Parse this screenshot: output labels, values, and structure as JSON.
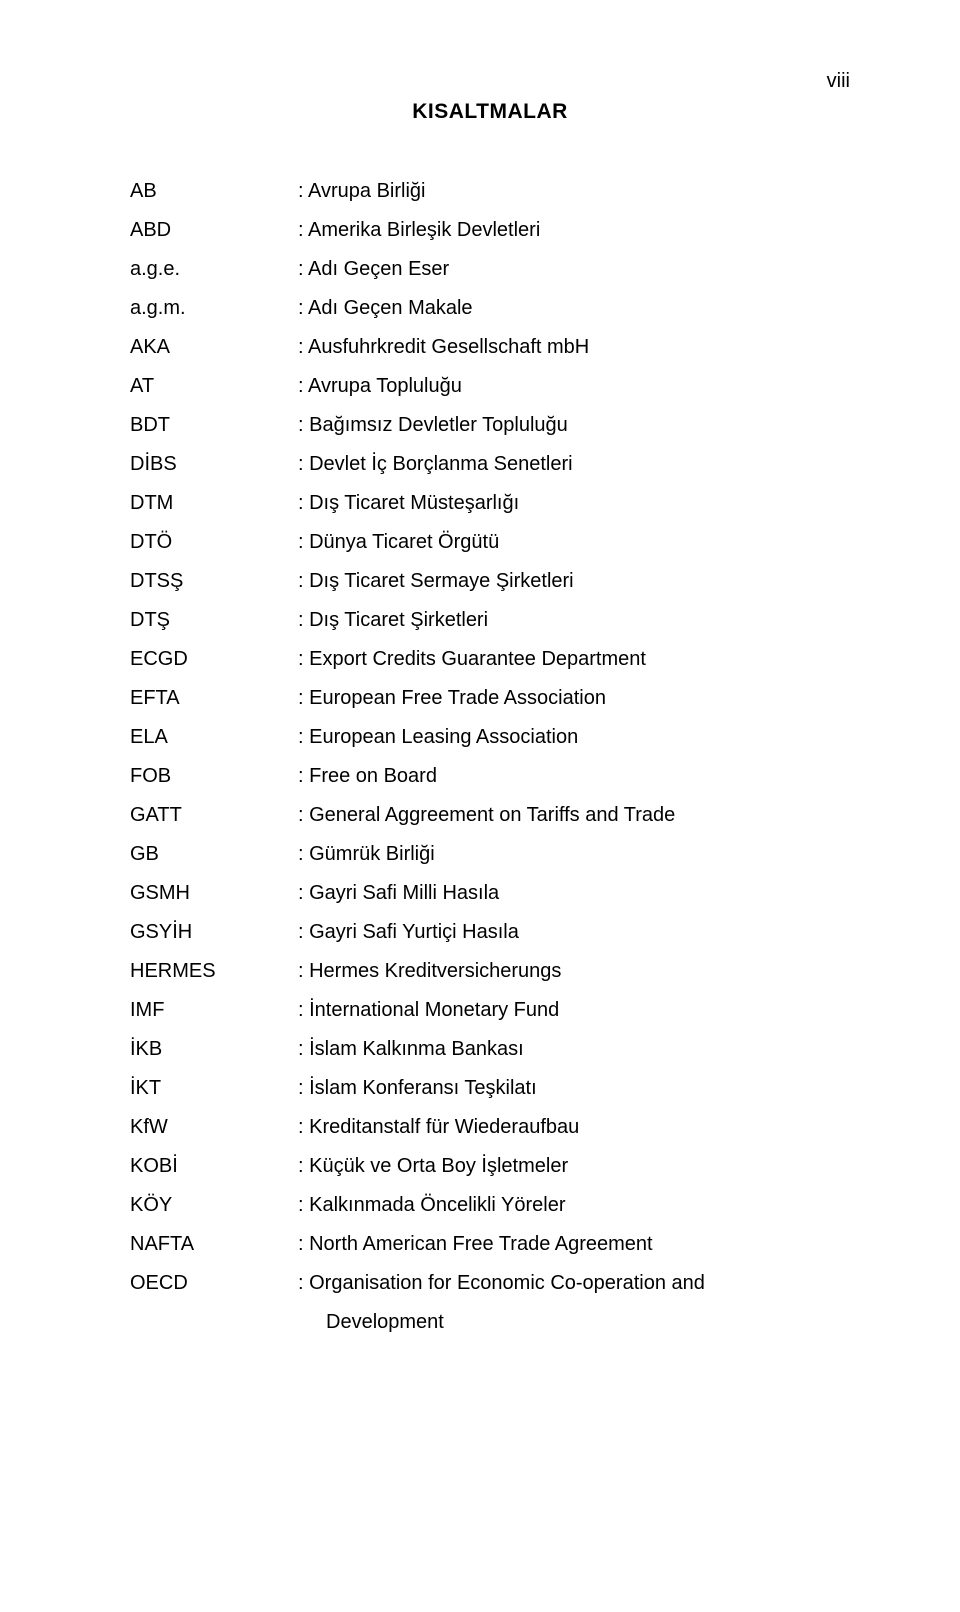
{
  "page_number": "viii",
  "title": "KISALTMALAR",
  "rows": [
    {
      "abbrev": "AB",
      "def": ": Avrupa Birliği"
    },
    {
      "abbrev": "ABD",
      "def": ": Amerika Birleşik Devletleri"
    },
    {
      "abbrev": "a.g.e.",
      "def": ": Adı Geçen Eser"
    },
    {
      "abbrev": "a.g.m.",
      "def": ": Adı Geçen Makale"
    },
    {
      "abbrev": "AKA",
      "def": ": Ausfuhrkredit Gesellschaft mbH"
    },
    {
      "abbrev": "AT",
      "def": ": Avrupa Topluluğu"
    },
    {
      "abbrev": "BDT",
      "def": ": Bağımsız Devletler Topluluğu"
    },
    {
      "abbrev": "DİBS",
      "def": ": Devlet İç Borçlanma Senetleri"
    },
    {
      "abbrev": "DTM",
      "def": ": Dış Ticaret Müsteşarlığı"
    },
    {
      "abbrev": "DTÖ",
      "def": ": Dünya Ticaret Örgütü"
    },
    {
      "abbrev": "DTSŞ",
      "def": ": Dış Ticaret Sermaye Şirketleri"
    },
    {
      "abbrev": "DTŞ",
      "def": ": Dış Ticaret Şirketleri"
    },
    {
      "abbrev": "ECGD",
      "def": ": Export Credits Guarantee Department"
    },
    {
      "abbrev": "EFTA",
      "def": ": European Free Trade Association"
    },
    {
      "abbrev": "ELA",
      "def": ": European Leasing Association"
    },
    {
      "abbrev": "FOB",
      "def": ": Free on Board"
    },
    {
      "abbrev": "GATT",
      "def": ": General Aggreement on Tariffs and Trade"
    },
    {
      "abbrev": "GB",
      "def": ": Gümrük Birliği"
    },
    {
      "abbrev": "GSMH",
      "def": ": Gayri Safi Milli Hasıla"
    },
    {
      "abbrev": "GSYİH",
      "def": ": Gayri Safi Yurtiçi Hasıla"
    },
    {
      "abbrev": "HERMES",
      "def": ": Hermes Kreditversicherungs"
    },
    {
      "abbrev": "IMF",
      "def": ": İnternational Monetary Fund"
    },
    {
      "abbrev": "İKB",
      "def": ": İslam Kalkınma Bankası"
    },
    {
      "abbrev": "İKT",
      "def": ": İslam Konferansı Teşkilatı"
    },
    {
      "abbrev": "KfW",
      "def": ": Kreditanstalf für Wiederaufbau"
    },
    {
      "abbrev": "KOBİ",
      "def": ": Küçük ve Orta Boy İşletmeler"
    },
    {
      "abbrev": "KÖY",
      "def": ": Kalkınmada Öncelikli Yöreler"
    },
    {
      "abbrev": "NAFTA",
      "def": ": North American Free Trade Agreement"
    },
    {
      "abbrev": "OECD",
      "def": ": Organisation for Economic Co-operation and"
    }
  ],
  "continuation": "Development"
}
